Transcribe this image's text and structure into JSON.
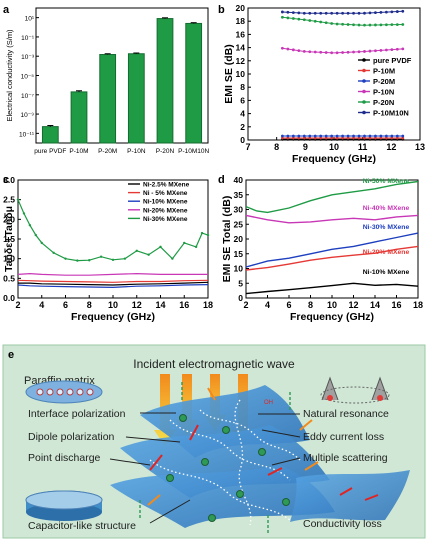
{
  "chart_data": [
    {
      "panel": "a",
      "type": "bar",
      "categories": [
        "pure PVDF",
        "P-10M",
        "P-20M",
        "P-10N",
        "P-20N",
        "P-10M10N"
      ],
      "values": [
        5e-11,
        2e-07,
        0.0015,
        0.0018,
        8,
        2.5
      ],
      "errors": [
        1.3,
        1.3,
        1.2,
        1.2,
        1.2,
        1.2
      ],
      "ylabel": "Electrical conductivity (S/m)",
      "yscale": "log",
      "ylim": [
        1e-12,
        100
      ],
      "yticks": [
        "10¹",
        "10⁻¹",
        "10⁻³",
        "10⁻⁵",
        "10⁻⁷",
        "10⁻⁹",
        "10⁻¹¹"
      ],
      "color": "#1f9b45"
    },
    {
      "panel": "b",
      "type": "line",
      "xlabel": "Frequency (GHz)",
      "ylabel": "EMI SE (dB)",
      "xlim": [
        7,
        13
      ],
      "ylim": [
        0,
        20
      ],
      "xticks": [
        "7",
        "8",
        "9",
        "10",
        "11",
        "12",
        "13"
      ],
      "yticks": [
        "0",
        "2",
        "4",
        "6",
        "8",
        "10",
        "12",
        "14",
        "16",
        "18",
        "20"
      ],
      "legend": "right",
      "series": [
        {
          "name": "pure PVDF",
          "color": "#000000",
          "x": [
            8.2,
            12.4
          ],
          "y": [
            0.1,
            0.1
          ]
        },
        {
          "name": "P-10M",
          "color": "#e53935",
          "x": [
            8.2,
            12.4
          ],
          "y": [
            0.3,
            0.3
          ]
        },
        {
          "name": "P-20M",
          "color": "#1e3fbf",
          "x": [
            8.2,
            12.4
          ],
          "y": [
            0.6,
            0.6
          ]
        },
        {
          "name": "P-10N",
          "color": "#c837b6",
          "x": [
            8.2,
            9,
            10,
            11,
            12.4
          ],
          "y": [
            13.9,
            13.4,
            13.2,
            13.4,
            13.8
          ]
        },
        {
          "name": "P-20N",
          "color": "#1f9b45",
          "x": [
            8.2,
            9,
            10,
            11,
            12.4
          ],
          "y": [
            18.6,
            18.2,
            17.6,
            17.4,
            17.5
          ]
        },
        {
          "name": "P-10M10N",
          "color": "#1e2c8c",
          "x": [
            8.2,
            9,
            10,
            11,
            12.4
          ],
          "y": [
            19.4,
            19.2,
            19.2,
            19.2,
            19.5
          ]
        }
      ]
    },
    {
      "panel": "c",
      "type": "line",
      "xlabel": "Frequency (GHz)",
      "ylabel": "Tanδε+Tanδμ",
      "xlim": [
        2,
        18
      ],
      "ylim": [
        0,
        3
      ],
      "xticks": [
        "2",
        "4",
        "6",
        "8",
        "10",
        "12",
        "14",
        "16",
        "18"
      ],
      "yticks": [
        "0.0",
        "0.5",
        "1.0",
        "1.5",
        "2.0",
        "2.5",
        "3.0"
      ],
      "legend": "top-right",
      "series": [
        {
          "name": "Ni-2.5% MXene",
          "color": "#000000",
          "x": [
            2,
            3,
            4,
            6,
            8,
            10,
            12,
            14,
            16,
            18
          ],
          "y": [
            0.38,
            0.38,
            0.36,
            0.35,
            0.34,
            0.33,
            0.35,
            0.36,
            0.38,
            0.4
          ]
        },
        {
          "name": "Ni - 5% MXene",
          "color": "#e53935",
          "x": [
            2,
            3,
            4,
            6,
            8,
            10,
            12,
            14,
            16,
            18
          ],
          "y": [
            0.45,
            0.44,
            0.43,
            0.42,
            0.41,
            0.4,
            0.42,
            0.42,
            0.44,
            0.45
          ]
        },
        {
          "name": "Ni-10% MXene",
          "color": "#1e3fbf",
          "x": [
            2,
            3,
            4,
            6,
            8,
            10,
            12,
            14,
            16,
            18
          ],
          "y": [
            0.33,
            0.31,
            0.3,
            0.29,
            0.28,
            0.27,
            0.3,
            0.31,
            0.33,
            0.34
          ]
        },
        {
          "name": "Ni-20% MXene",
          "color": "#c837b6",
          "x": [
            2,
            3,
            4,
            6,
            8,
            10,
            12,
            14,
            16,
            18
          ],
          "y": [
            0.6,
            0.62,
            0.6,
            0.58,
            0.58,
            0.6,
            0.62,
            0.6,
            0.6,
            0.6
          ]
        },
        {
          "name": "Ni-30% MXene",
          "color": "#1f9b45",
          "x": [
            2,
            2.5,
            3,
            3.5,
            4,
            5,
            6,
            7,
            8,
            9,
            10,
            11,
            12,
            13,
            14,
            15,
            16,
            17,
            17.5,
            18
          ],
          "y": [
            2.5,
            2.15,
            1.85,
            1.6,
            1.4,
            1.15,
            1.0,
            0.95,
            0.96,
            1.05,
            0.97,
            1.0,
            1.2,
            1.1,
            1.3,
            1.0,
            1.4,
            1.3,
            1.65,
            1.6
          ]
        }
      ]
    },
    {
      "panel": "d",
      "type": "line",
      "xlabel": "Frequency (GHz)",
      "ylabel": "EMI SE Total (dB)",
      "xlim": [
        2,
        18
      ],
      "ylim": [
        0,
        40
      ],
      "xticks": [
        "2",
        "4",
        "6",
        "8",
        "10",
        "12",
        "14",
        "16",
        "18"
      ],
      "yticks": [
        "0",
        "5",
        "10",
        "15",
        "20",
        "25",
        "30",
        "35",
        "40"
      ],
      "series": [
        {
          "name": "Ni-10% MXene",
          "color": "#000000",
          "x": [
            2,
            4,
            6,
            8,
            10,
            12,
            14,
            16,
            18
          ],
          "y": [
            1.5,
            2.2,
            2.8,
            3.5,
            4.2,
            5.0,
            4.3,
            4.6,
            4.0
          ]
        },
        {
          "name": "Ni-20% MXene",
          "color": "#e53935",
          "x": [
            2,
            4,
            6,
            8,
            10,
            12,
            14,
            16,
            18
          ],
          "y": [
            9.5,
            10.3,
            11.5,
            12.8,
            13.8,
            14.5,
            15.2,
            16.5,
            17.5
          ]
        },
        {
          "name": "Ni-30% MXene",
          "color": "#1e3fbf",
          "x": [
            2,
            4,
            6,
            8,
            10,
            12,
            14,
            16,
            18
          ],
          "y": [
            10.5,
            12.5,
            13.5,
            15.0,
            16.5,
            17.5,
            19.0,
            20.5,
            22.0
          ]
        },
        {
          "name": "Ni-40% MXene",
          "color": "#c837b6",
          "x": [
            2,
            4,
            6,
            8,
            10,
            12,
            14,
            16,
            18
          ],
          "y": [
            28.0,
            26.5,
            25.5,
            25.8,
            26.5,
            27.0,
            26.5,
            27.5,
            28.0
          ]
        },
        {
          "name": "Ni-50% MXene",
          "color": "#1f9b45",
          "x": [
            2,
            3,
            4,
            6,
            8,
            10,
            12,
            14,
            16,
            18
          ],
          "y": [
            31.0,
            29.5,
            29.0,
            30.5,
            33.0,
            35.0,
            36.0,
            37.0,
            38.5,
            39.5
          ]
        }
      ]
    }
  ],
  "panel_e": {
    "title": "Incident electromagnetic wave",
    "paraffin": "Paraffin matrix",
    "left_labels": [
      "Interface polarization",
      "Dipole polarization",
      "Point discharge",
      "Capacitor-like structure"
    ],
    "right_labels": [
      "Natural resonance",
      "Eddy current loss",
      "Multiple scattering",
      "Conductivity loss"
    ],
    "oh_label": "OH",
    "bg_color": "#cfe7d4",
    "sheet_color": "#3a8fd6"
  },
  "panel_letters": [
    "a",
    "b",
    "c",
    "d",
    "e"
  ]
}
